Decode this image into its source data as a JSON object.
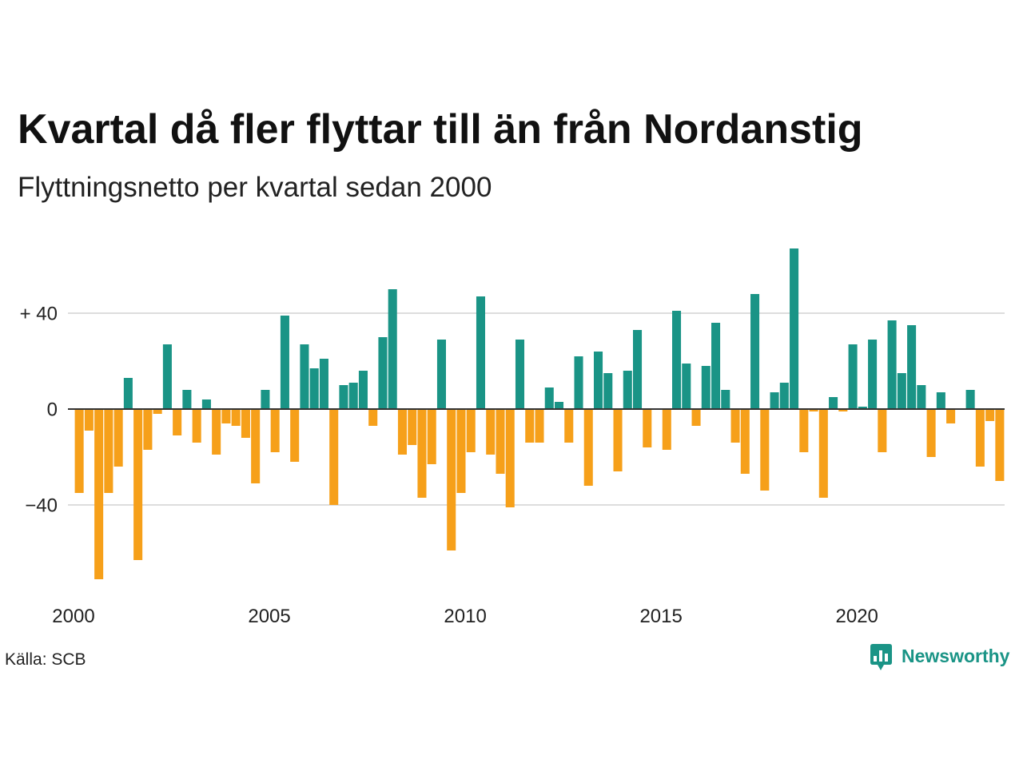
{
  "chart_data": {
    "type": "bar",
    "title": "Kvartal då fler flyttar till än från Nordanstig",
    "subtitle": "Flyttningsnetto per kvartal sedan 2000",
    "source": "Källa: SCB",
    "x": [
      2000,
      2000.25,
      2000.5,
      2000.75,
      2001,
      2001.25,
      2001.5,
      2001.75,
      2002,
      2002.25,
      2002.5,
      2002.75,
      2003,
      2003.25,
      2003.5,
      2003.75,
      2004,
      2004.25,
      2004.5,
      2004.75,
      2005,
      2005.25,
      2005.5,
      2005.75,
      2006,
      2006.25,
      2006.5,
      2006.75,
      2007,
      2007.25,
      2007.5,
      2007.75,
      2008,
      2008.25,
      2008.5,
      2008.75,
      2009,
      2009.25,
      2009.5,
      2009.75,
      2010,
      2010.25,
      2010.5,
      2010.75,
      2011,
      2011.25,
      2011.5,
      2011.75,
      2012,
      2012.25,
      2012.5,
      2012.75,
      2013,
      2013.25,
      2013.5,
      2013.75,
      2014,
      2014.25,
      2014.5,
      2014.75,
      2015,
      2015.25,
      2015.5,
      2015.75,
      2016,
      2016.25,
      2016.5,
      2016.75,
      2017,
      2017.25,
      2017.5,
      2017.75,
      2018,
      2018.25,
      2018.5,
      2018.75,
      2019,
      2019.25,
      2019.5,
      2019.75,
      2020,
      2020.25,
      2020.5,
      2020.75,
      2021,
      2021.25,
      2021.5,
      2021.75,
      2022,
      2022.25,
      2022.5,
      2022.75,
      2023,
      2023.25,
      2023.5
    ],
    "values": [
      -35,
      -9,
      -71,
      -35,
      -24,
      13,
      -63,
      -17,
      -2,
      27,
      -11,
      8,
      -14,
      4,
      -19,
      -6,
      -7,
      -12,
      -31,
      8,
      -18,
      39,
      -22,
      27,
      17,
      21,
      -40,
      10,
      11,
      16,
      -7,
      30,
      50,
      -19,
      -15,
      -37,
      -23,
      29,
      -59,
      -35,
      -18,
      47,
      -19,
      -27,
      -41,
      29,
      -14,
      -14,
      9,
      3,
      -14,
      22,
      -32,
      24,
      15,
      -26,
      16,
      33,
      -16,
      0,
      -17,
      41,
      19,
      -7,
      18,
      36,
      8,
      -14,
      -27,
      48,
      -34,
      7,
      11,
      67,
      -18,
      -1,
      -37,
      5,
      -1,
      27,
      1,
      29,
      -18,
      37,
      15,
      35,
      10,
      -20,
      7,
      -6,
      0,
      8,
      -24,
      -5,
      -30
    ],
    "xlim": [
      2000,
      2023.75
    ],
    "ylim": [
      -75,
      70
    ],
    "xticks": [
      2000,
      2005,
      2010,
      2015,
      2020
    ],
    "yticks": [
      40,
      0,
      -40
    ],
    "ytick_labels": [
      "+ 40",
      "0",
      "−40"
    ],
    "grid": true,
    "colors": {
      "positive": "#1a9486",
      "negative": "#f6a01a",
      "grid": "#dddddd",
      "axis": "#333333"
    }
  },
  "brand": {
    "name": "Newsworthy",
    "color": "#1a9486",
    "icon": "newsworthy-logo-icon"
  }
}
